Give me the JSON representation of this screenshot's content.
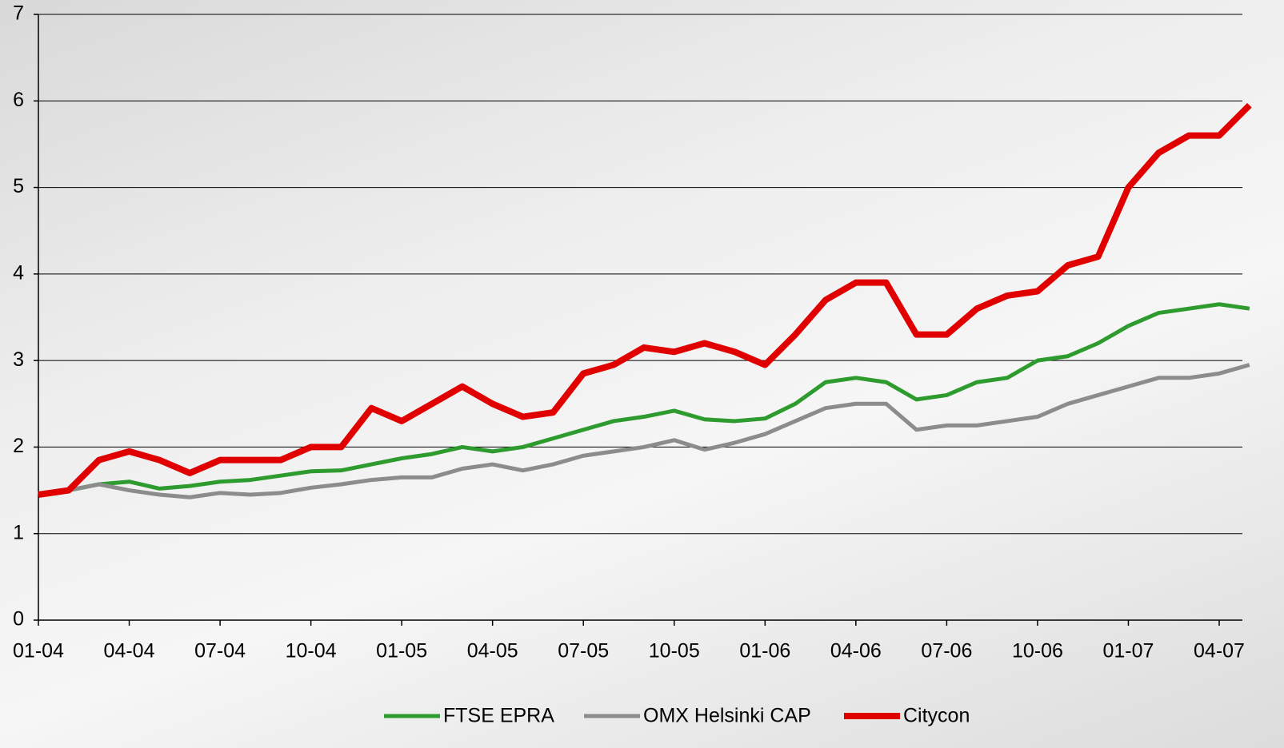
{
  "chart_data": {
    "type": "line",
    "categories": [
      "01-04",
      null,
      null,
      "04-04",
      null,
      null,
      "07-04",
      null,
      null,
      "10-04",
      null,
      null,
      "01-05",
      null,
      null,
      "04-05",
      null,
      null,
      "07-05",
      null,
      null,
      "10-05",
      null,
      null,
      "01-06",
      null,
      null,
      "04-06",
      null,
      null,
      "07-06",
      null,
      null,
      "10-06",
      null,
      null,
      "01-07",
      null,
      null,
      "04-07",
      null
    ],
    "series": [
      {
        "name": "FTSE EPRA",
        "color": "#2e9b2e",
        "values": [
          1.45,
          1.5,
          1.57,
          1.6,
          1.52,
          1.55,
          1.6,
          1.62,
          1.67,
          1.72,
          1.73,
          1.8,
          1.87,
          1.92,
          2.0,
          1.95,
          2.0,
          2.1,
          2.2,
          2.3,
          2.35,
          2.42,
          2.32,
          2.3,
          2.33,
          2.5,
          2.75,
          2.8,
          2.75,
          2.55,
          2.6,
          2.75,
          2.8,
          3.0,
          3.05,
          3.2,
          3.4,
          3.55,
          3.6,
          3.65,
          3.6
        ]
      },
      {
        "name": "OMX Helsinki CAP",
        "color": "#8c8c8c",
        "values": [
          1.45,
          1.5,
          1.57,
          1.5,
          1.45,
          1.42,
          1.47,
          1.45,
          1.47,
          1.53,
          1.57,
          1.62,
          1.65,
          1.65,
          1.75,
          1.8,
          1.73,
          1.8,
          1.9,
          1.95,
          2.0,
          2.08,
          1.97,
          2.05,
          2.15,
          2.3,
          2.45,
          2.5,
          2.5,
          2.2,
          2.25,
          2.25,
          2.3,
          2.35,
          2.5,
          2.6,
          2.7,
          2.8,
          2.8,
          2.85,
          2.95
        ]
      },
      {
        "name": "Citycon",
        "color": "#e00000",
        "values": [
          1.45,
          1.5,
          1.85,
          1.95,
          1.85,
          1.7,
          1.85,
          1.85,
          1.85,
          2.0,
          2.0,
          2.45,
          2.3,
          2.5,
          2.7,
          2.5,
          2.35,
          2.4,
          2.85,
          2.95,
          3.15,
          3.1,
          3.2,
          3.1,
          2.95,
          3.3,
          3.7,
          3.9,
          3.9,
          3.3,
          3.3,
          3.6,
          3.75,
          3.8,
          4.1,
          4.2,
          5.0,
          5.4,
          5.6,
          5.6,
          5.95
        ]
      }
    ],
    "ylim": [
      0,
      7
    ],
    "yticks": [
      0,
      1,
      2,
      3,
      4,
      5,
      6,
      7
    ],
    "grid": true,
    "legend": "bottom"
  }
}
